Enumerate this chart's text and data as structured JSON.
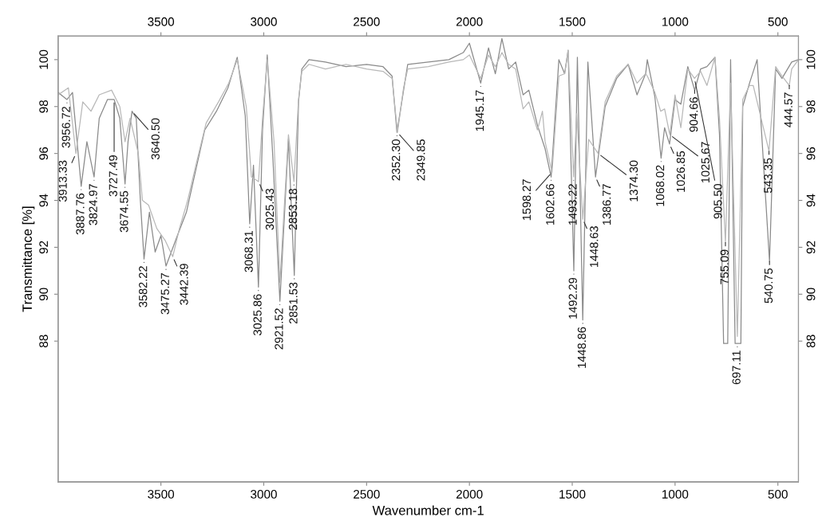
{
  "chart_data": {
    "type": "line",
    "xlabel": "Wavenumber cm-1",
    "ylabel": "Transmittance [%]",
    "xlim": [
      4000,
      400
    ],
    "xticks": [
      3500,
      3000,
      2500,
      2000,
      1500,
      1000,
      500
    ],
    "x2lim": [
      4000,
      400
    ],
    "x2ticks": [
      3500,
      3000,
      2500,
      2000,
      1500,
      1000,
      500
    ],
    "ylim": [
      82,
      101
    ],
    "yticks": [
      88,
      90,
      92,
      94,
      96,
      98,
      100
    ],
    "y2lim": [
      82,
      101
    ],
    "y2ticks": [
      88,
      90,
      92,
      94,
      96,
      98,
      100
    ],
    "grid": false,
    "marker": "none",
    "line_style": "solid",
    "series": [
      {
        "color": "#8a8a8a",
        "x": [
          4000,
          3956.72,
          3930,
          3887.76,
          3860,
          3824.97,
          3800,
          3760,
          3727.49,
          3700,
          3674.55,
          3660,
          3640.5,
          3620,
          3600,
          3582.22,
          3556,
          3528,
          3500,
          3475.27,
          3420,
          3376,
          3343,
          3287,
          3230,
          3174,
          3129,
          3090,
          3068.31,
          3050,
          3025.86,
          3006,
          2983,
          2955,
          2921.52,
          2880,
          2851.53,
          2831,
          2815,
          2780,
          2700,
          2600,
          2500,
          2420,
          2376,
          2352.3,
          2320,
          2300,
          2200,
          2100,
          2030,
          2000,
          1945.17,
          1907,
          1874,
          1842,
          1809,
          1775,
          1739,
          1711,
          1669,
          1632,
          1602.66,
          1565,
          1537,
          1520,
          1492.29,
          1475,
          1448.86,
          1424,
          1386.77,
          1340,
          1284,
          1228,
          1185,
          1143,
          1135,
          1098,
          1068.02,
          1051,
          1026.85,
          1000,
          972,
          938,
          904.66,
          876,
          845,
          806,
          784,
          764,
          744,
          730,
          708,
          680,
          671,
          638,
          601,
          540.75,
          511,
          480,
          433,
          400
        ],
        "values": [
          98.6,
          98.3,
          98.6,
          94.6,
          96.5,
          95.0,
          97.5,
          98.3,
          98.3,
          97.5,
          94.7,
          96.5,
          97.8,
          97.5,
          94.0,
          91.5,
          93.5,
          91.8,
          92.5,
          91.2,
          92.5,
          93.5,
          94.8,
          97.0,
          97.8,
          98.8,
          100.1,
          97.6,
          93.0,
          95.5,
          90.3,
          97.0,
          100.2,
          95.7,
          89.7,
          96.6,
          90.8,
          98.2,
          99.6,
          100.0,
          99.9,
          99.7,
          99.8,
          99.7,
          99.3,
          96.9,
          98.7,
          99.8,
          99.9,
          100.0,
          100.3,
          100.7,
          99.0,
          100.5,
          99.4,
          100.9,
          99.6,
          99.9,
          98.5,
          98.7,
          97.2,
          96.2,
          95.0,
          100.0,
          99.4,
          100.4,
          91.0,
          100.1,
          88.9,
          99.9,
          95.0,
          98.0,
          99.2,
          99.8,
          98.5,
          99.4,
          100.0,
          98.4,
          95.8,
          97.1,
          96.4,
          98.3,
          98.1,
          99.7,
          98.7,
          99.6,
          99.7,
          100.1,
          96.8,
          87.9,
          87.9,
          100.0,
          87.9,
          87.9,
          98.0,
          99.0,
          100.0,
          91.4,
          99.6,
          99.2,
          99.9,
          100.0
        ]
      },
      {
        "color": "#b8b8b8",
        "x": [
          4000,
          3950,
          3913.33,
          3880,
          3840,
          3800,
          3740,
          3700,
          3674.55,
          3650,
          3610,
          3590,
          3560,
          3520,
          3480,
          3442.39,
          3410,
          3370,
          3330,
          3280,
          3220,
          3170,
          3129,
          3085,
          3060,
          3025.43,
          3006,
          2983,
          2950,
          2921.52,
          2880,
          2853.18,
          2831,
          2815,
          2780,
          2700,
          2600,
          2500,
          2420,
          2376,
          2349.85,
          2320,
          2300,
          2200,
          2100,
          2030,
          2000,
          1945.17,
          1907,
          1874,
          1842,
          1809,
          1775,
          1739,
          1711,
          1669,
          1645,
          1632,
          1598.27,
          1565,
          1537,
          1520,
          1493.22,
          1478,
          1448.63,
          1420,
          1374.3,
          1340,
          1284,
          1228,
          1185,
          1143,
          1135,
          1098,
          1070,
          1051,
          1025.67,
          1000,
          972,
          938,
          905.5,
          876,
          845,
          806,
          784,
          755.09,
          730,
          697.11,
          671,
          638,
          620,
          543.35,
          511,
          480,
          444.57,
          433,
          400
        ],
        "values": [
          98.5,
          98.8,
          96.0,
          98.2,
          97.8,
          98.5,
          98.7,
          98.0,
          96.5,
          97.5,
          96.0,
          94.0,
          93.8,
          92.8,
          92.3,
          91.6,
          92.8,
          94.0,
          95.5,
          97.3,
          98.2,
          99.0,
          100.0,
          98.0,
          95.0,
          94.8,
          97.5,
          100.0,
          96.5,
          90.5,
          96.8,
          94.8,
          98.3,
          99.5,
          99.8,
          99.6,
          99.8,
          99.6,
          99.5,
          99.2,
          96.9,
          98.8,
          99.6,
          99.7,
          99.9,
          100.0,
          100.2,
          99.2,
          100.2,
          99.7,
          100.3,
          99.8,
          99.6,
          97.9,
          98.2,
          97.0,
          97.8,
          96.5,
          95.2,
          99.3,
          99.4,
          100.4,
          95.0,
          97.7,
          93.2,
          96.6,
          96.0,
          98.2,
          99.3,
          99.8,
          99.0,
          99.4,
          99.3,
          98.6,
          97.8,
          97.9,
          96.8,
          98.5,
          97.1,
          99.6,
          99.2,
          99.5,
          98.9,
          100.1,
          97.5,
          92.2,
          99.0,
          88.2,
          98.3,
          98.9,
          98.9,
          96.1,
          99.7,
          99.3,
          98.9,
          99.6,
          100.0
        ]
      }
    ],
    "annotations": [
      {
        "text": "3956.72",
        "x": 3956.72,
        "y": 98.3
      },
      {
        "text": "3913.33",
        "x": 3913.33,
        "y": 96.0
      },
      {
        "text": "3887.76",
        "x": 3887.76,
        "y": 94.6
      },
      {
        "text": "3824.97",
        "x": 3824.97,
        "y": 95.0
      },
      {
        "text": "3727.49",
        "x": 3727.49,
        "y": 98.3
      },
      {
        "text": "3674.55",
        "x": 3674.55,
        "y": 94.7
      },
      {
        "text": "3640.50",
        "x": 3640.5,
        "y": 97.8
      },
      {
        "text": "3582.22",
        "x": 3582.22,
        "y": 91.5
      },
      {
        "text": "3475.27",
        "x": 3475.27,
        "y": 91.2
      },
      {
        "text": "3442.39",
        "x": 3442.39,
        "y": 91.6
      },
      {
        "text": "3068.31",
        "x": 3068.31,
        "y": 93.0
      },
      {
        "text": "3025.43",
        "x": 3025.43,
        "y": 94.8
      },
      {
        "text": "3025.86",
        "x": 3025.86,
        "y": 90.3
      },
      {
        "text": "2921.52",
        "x": 2921.52,
        "y": 89.7
      },
      {
        "text": "2853.18",
        "x": 2853.18,
        "y": 94.8
      },
      {
        "text": "2851.53",
        "x": 2851.53,
        "y": 90.8
      },
      {
        "text": "2352.30",
        "x": 2352.3,
        "y": 96.9
      },
      {
        "text": "2349.85",
        "x": 2349.85,
        "y": 96.9
      },
      {
        "text": "1945.17",
        "x": 1945.17,
        "y": 99.0
      },
      {
        "text": "1602.66",
        "x": 1602.66,
        "y": 95.0
      },
      {
        "text": "1598.27",
        "x": 1598.27,
        "y": 95.2
      },
      {
        "text": "1493.22",
        "x": 1493.22,
        "y": 95.0
      },
      {
        "text": "1492.29",
        "x": 1492.29,
        "y": 91.0
      },
      {
        "text": "1448.63",
        "x": 1448.63,
        "y": 93.2
      },
      {
        "text": "1448.86",
        "x": 1448.86,
        "y": 88.9
      },
      {
        "text": "1386.77",
        "x": 1386.77,
        "y": 95.0
      },
      {
        "text": "1374.30",
        "x": 1374.3,
        "y": 96.0
      },
      {
        "text": "1068.02",
        "x": 1068.02,
        "y": 95.8
      },
      {
        "text": "1026.85",
        "x": 1026.85,
        "y": 96.4
      },
      {
        "text": "1025.67",
        "x": 1025.67,
        "y": 96.8
      },
      {
        "text": "905.50",
        "x": 905.5,
        "y": 99.2
      },
      {
        "text": "904.66",
        "x": 904.66,
        "y": 98.7
      },
      {
        "text": "755.09",
        "x": 755.09,
        "y": 92.2
      },
      {
        "text": "697.11",
        "x": 697.11,
        "y": 87.9
      },
      {
        "text": "543.35",
        "x": 543.35,
        "y": 96.1
      },
      {
        "text": "540.75",
        "x": 540.75,
        "y": 91.4
      },
      {
        "text": "444.57",
        "x": 444.57,
        "y": 98.9
      }
    ]
  }
}
